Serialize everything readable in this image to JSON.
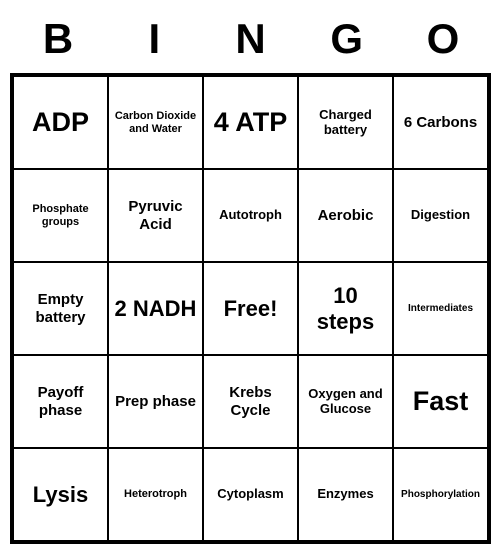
{
  "header": {
    "letters": [
      "B",
      "I",
      "N",
      "G",
      "O"
    ]
  },
  "grid": {
    "type": "bingo",
    "columns": 5,
    "rows": 5,
    "border_color": "#000000",
    "background_color": "#ffffff",
    "text_color": "#000000",
    "cells": [
      {
        "text": "ADP",
        "size": "xxl"
      },
      {
        "text": "Carbon Dioxide and Water",
        "size": "xs"
      },
      {
        "text": "4 ATP",
        "size": "xxl"
      },
      {
        "text": "Charged battery",
        "size": "sm"
      },
      {
        "text": "6 Carbons",
        "size": "md"
      },
      {
        "text": "Phosphate groups",
        "size": "xs"
      },
      {
        "text": "Pyruvic Acid",
        "size": "md"
      },
      {
        "text": "Autotroph",
        "size": "sm"
      },
      {
        "text": "Aerobic",
        "size": "md"
      },
      {
        "text": "Digestion",
        "size": "sm"
      },
      {
        "text": "Empty battery",
        "size": "md"
      },
      {
        "text": "2 NADH",
        "size": "xl"
      },
      {
        "text": "Free!",
        "size": "xl"
      },
      {
        "text": "10 steps",
        "size": "xl"
      },
      {
        "text": "Intermediates",
        "size": "tiny"
      },
      {
        "text": "Payoff phase",
        "size": "md"
      },
      {
        "text": "Prep phase",
        "size": "md"
      },
      {
        "text": "Krebs Cycle",
        "size": "md"
      },
      {
        "text": "Oxygen and Glucose",
        "size": "sm"
      },
      {
        "text": "Fast",
        "size": "xxl"
      },
      {
        "text": "Lysis",
        "size": "xl"
      },
      {
        "text": "Heterotroph",
        "size": "xs"
      },
      {
        "text": "Cytoplasm",
        "size": "sm"
      },
      {
        "text": "Enzymes",
        "size": "sm"
      },
      {
        "text": "Phosphorylation",
        "size": "tiny"
      }
    ]
  }
}
